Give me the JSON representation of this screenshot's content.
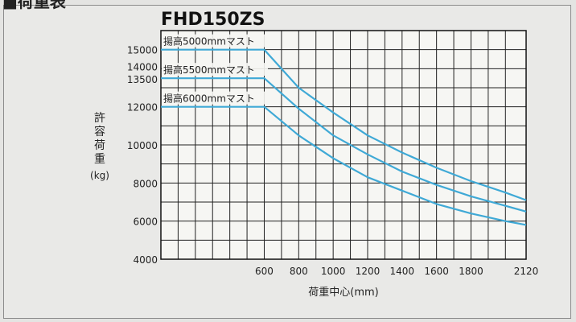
{
  "section": {
    "heading": "■荷重表"
  },
  "chart_data": {
    "type": "line",
    "title": "FHD150ZS",
    "xlabel": "荷重中心(mm)",
    "ylabel": [
      "許",
      "容",
      "荷",
      "重",
      "(kg)"
    ],
    "xlim": [
      0,
      2120
    ],
    "ylim": [
      4000,
      16000
    ],
    "x_ticks": [
      600,
      800,
      1000,
      1200,
      1400,
      1600,
      1800,
      2120
    ],
    "x_tick_labels": [
      "600",
      "800",
      "1000",
      "1200",
      "1400",
      "1600",
      "1800",
      "2120"
    ],
    "y_ticks": [
      4000,
      6000,
      8000,
      10000,
      12000,
      13500,
      14000,
      15000
    ],
    "y_tick_labels": [
      "4000",
      "6000",
      "8000",
      "10000",
      "12000",
      "13500",
      "14000",
      "15000"
    ],
    "grid": true,
    "line_color": "#3fa9d6",
    "series": [
      {
        "name": "揚高5000mmマスト",
        "x": [
          0,
          600,
          800,
          1000,
          1200,
          1400,
          1600,
          1800,
          2000,
          2120
        ],
        "y": [
          15000,
          15000,
          13000,
          11700,
          10500,
          9600,
          8800,
          8100,
          7500,
          7100
        ]
      },
      {
        "name": "揚高5500mmマスト",
        "x": [
          0,
          600,
          800,
          1000,
          1200,
          1400,
          1600,
          1800,
          2000,
          2120
        ],
        "y": [
          13500,
          13500,
          11900,
          10500,
          9500,
          8600,
          7900,
          7300,
          6800,
          6500
        ]
      },
      {
        "name": "揚高6000mmマスト",
        "x": [
          0,
          600,
          800,
          1000,
          1200,
          1400,
          1600,
          1800,
          2000,
          2120
        ],
        "y": [
          12000,
          12000,
          10500,
          9300,
          8300,
          7600,
          6900,
          6400,
          6000,
          5800
        ]
      }
    ]
  }
}
